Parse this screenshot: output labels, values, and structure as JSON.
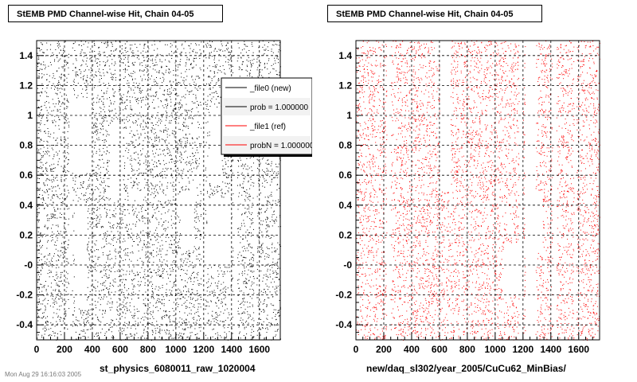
{
  "chart_data": [
    {
      "type": "scatter",
      "title": "StEMB PMD Channel-wise Hit, Chain 04-05",
      "xlabel": "st_physics_6080011_raw_1020004",
      "ylabel": "",
      "xlim": [
        0,
        1750
      ],
      "ylim": [
        -0.5,
        1.5
      ],
      "xticks": [
        "0",
        "200",
        "400",
        "600",
        "800",
        "1000",
        "1200",
        "1400",
        "1600"
      ],
      "yticks": [
        "-0.4",
        "-0.2",
        "-0",
        "0.2",
        "0.4",
        "0.6",
        "0.8",
        "1",
        "1.2",
        "1.4"
      ],
      "grid": true,
      "marker_color": "#000000",
      "empty_regions": [
        {
          "x": [
            230,
            255
          ],
          "y": [
            -0.5,
            1.5
          ]
        },
        {
          "x": [
            1180,
            1210
          ],
          "y": [
            -0.5,
            1.5
          ]
        },
        {
          "x": [
            1410,
            1440
          ],
          "y": [
            -0.5,
            1.5
          ]
        },
        {
          "x": [
            1560,
            1580
          ],
          "y": [
            -0.5,
            1.5
          ]
        },
        {
          "x": [
            240,
            400
          ],
          "y": [
            0.62,
            1.12
          ]
        },
        {
          "x": [
            270,
            360
          ],
          "y": [
            -0.28,
            0.42
          ]
        },
        {
          "x": [
            520,
            620
          ],
          "y": [
            0.45,
            0.95
          ]
        },
        {
          "x": [
            1220,
            1400
          ],
          "y": [
            0.0,
            0.45
          ]
        },
        {
          "x": [
            1240,
            1330
          ],
          "y": [
            0.55,
            1.05
          ]
        },
        {
          "x": [
            1030,
            1130
          ],
          "y": [
            0.1,
            0.5
          ]
        }
      ],
      "legend": {
        "placement": "top-right",
        "entries": [
          {
            "label": "_file0 (new)",
            "color": "#000000"
          },
          {
            "label": "prob = 1.000000",
            "color": "#000000"
          },
          {
            "label": "_file1 (ref)",
            "color": "#ff0000"
          },
          {
            "label": "probN = 1.000000",
            "color": "#ff0000"
          }
        ]
      }
    },
    {
      "type": "scatter",
      "title": "StEMB PMD Channel-wise Hit, Chain 04-05",
      "xlabel": "new/daq_sl302/year_2005/CuCu62_MinBias/",
      "ylabel": "",
      "xlim": [
        0,
        1750
      ],
      "ylim": [
        -0.5,
        1.5
      ],
      "xticks": [
        "0",
        "200",
        "400",
        "600",
        "800",
        "1000",
        "1200",
        "1400",
        "1600"
      ],
      "yticks": [
        "-0.4",
        "-0.2",
        "-0",
        "0.2",
        "0.4",
        "0.6",
        "0.8",
        "1",
        "1.2",
        "1.4"
      ],
      "grid": true,
      "marker_color": "#ff0000",
      "empty_regions": [
        {
          "x": [
            220,
            250
          ],
          "y": [
            -0.5,
            1.5
          ]
        },
        {
          "x": [
            1170,
            1200
          ],
          "y": [
            -0.5,
            1.5
          ]
        },
        {
          "x": [
            1410,
            1440
          ],
          "y": [
            -0.5,
            1.5
          ]
        },
        {
          "x": [
            1565,
            1585
          ],
          "y": [
            -0.5,
            1.5
          ]
        },
        {
          "x": [
            1215,
            1290
          ],
          "y": [
            -0.5,
            1.5
          ]
        },
        {
          "x": [
            600,
            680
          ],
          "y": [
            0.5,
            1.5
          ]
        },
        {
          "x": [
            1210,
            1340
          ],
          "y": [
            0.1,
            0.5
          ]
        },
        {
          "x": [
            1060,
            1170
          ],
          "y": [
            -0.2,
            0.15
          ]
        }
      ]
    }
  ],
  "footer_stamp": "Mon Aug 29 16:16:03 2005"
}
